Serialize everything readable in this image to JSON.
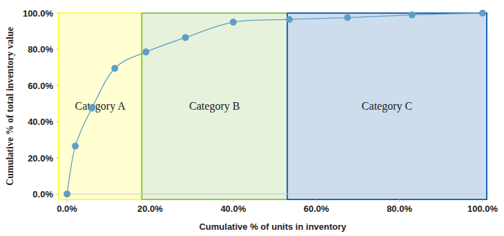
{
  "chart_data": {
    "type": "line",
    "x_label": "Cumulative % of units in inventory",
    "y_label": "Cumulative % of total inventory value",
    "x": [
      0,
      2,
      6,
      11.5,
      19,
      28.5,
      40,
      53.5,
      67.5,
      83,
      100
    ],
    "values": [
      0,
      26.5,
      47.5,
      69.5,
      78.5,
      86.5,
      95,
      96.5,
      97.5,
      99,
      100
    ],
    "color": "#5f9ec7",
    "marker": "circle",
    "line_style": "smooth",
    "grid": false,
    "xlim": [
      -2,
      101
    ],
    "ylim": [
      -3,
      100
    ],
    "xticks": [
      {
        "value": 0,
        "label": "0.0%"
      },
      {
        "value": 20,
        "label": "20.0%"
      },
      {
        "value": 40,
        "label": "40.0%"
      },
      {
        "value": 60,
        "label": "60.0%"
      },
      {
        "value": 80,
        "label": "80.0%"
      },
      {
        "value": 100,
        "label": "100.0%"
      }
    ],
    "yticks": [
      {
        "value": 0,
        "label": "0.0%"
      },
      {
        "value": 20,
        "label": "20.0%"
      },
      {
        "value": 40,
        "label": "40.0%"
      },
      {
        "value": 60,
        "label": "60.0%"
      },
      {
        "value": 80,
        "label": "80.0%"
      },
      {
        "value": 100,
        "label": "100.0%"
      }
    ],
    "regions": [
      {
        "label": "Category A",
        "start": -2,
        "end": 18,
        "color": "#ffff33"
      },
      {
        "label": "Category B",
        "start": 18,
        "end": 53,
        "color": "#8cc65a"
      },
      {
        "label": "Category C",
        "start": 53,
        "end": 101,
        "color": "#1f65b0"
      }
    ]
  }
}
